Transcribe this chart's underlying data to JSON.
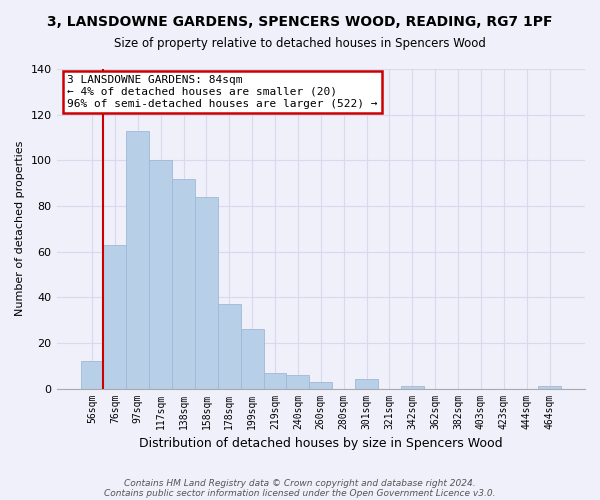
{
  "title": "3, LANSDOWNE GARDENS, SPENCERS WOOD, READING, RG7 1PF",
  "subtitle": "Size of property relative to detached houses in Spencers Wood",
  "xlabel": "Distribution of detached houses by size in Spencers Wood",
  "ylabel": "Number of detached properties",
  "bar_labels": [
    "56sqm",
    "76sqm",
    "97sqm",
    "117sqm",
    "138sqm",
    "158sqm",
    "178sqm",
    "199sqm",
    "219sqm",
    "240sqm",
    "260sqm",
    "280sqm",
    "301sqm",
    "321sqm",
    "342sqm",
    "362sqm",
    "382sqm",
    "403sqm",
    "423sqm",
    "444sqm",
    "464sqm"
  ],
  "bar_values": [
    12,
    63,
    113,
    100,
    92,
    84,
    37,
    26,
    7,
    6,
    3,
    0,
    4,
    0,
    1,
    0,
    0,
    0,
    0,
    0,
    1
  ],
  "bar_color": "#b8cfe8",
  "bar_edge_color": "#a0b8d8",
  "vline_x": 0.5,
  "vline_color": "#cc0000",
  "annotation_text": "3 LANSDOWNE GARDENS: 84sqm\n← 4% of detached houses are smaller (20)\n96% of semi-detached houses are larger (522) →",
  "annotation_box_color": "#cc0000",
  "ylim": [
    0,
    140
  ],
  "yticks": [
    0,
    20,
    40,
    60,
    80,
    100,
    120,
    140
  ],
  "footnote_line1": "Contains HM Land Registry data © Crown copyright and database right 2024.",
  "footnote_line2": "Contains public sector information licensed under the Open Government Licence v3.0.",
  "background_color": "#f0f0fa",
  "grid_color": "#d8d8ee"
}
